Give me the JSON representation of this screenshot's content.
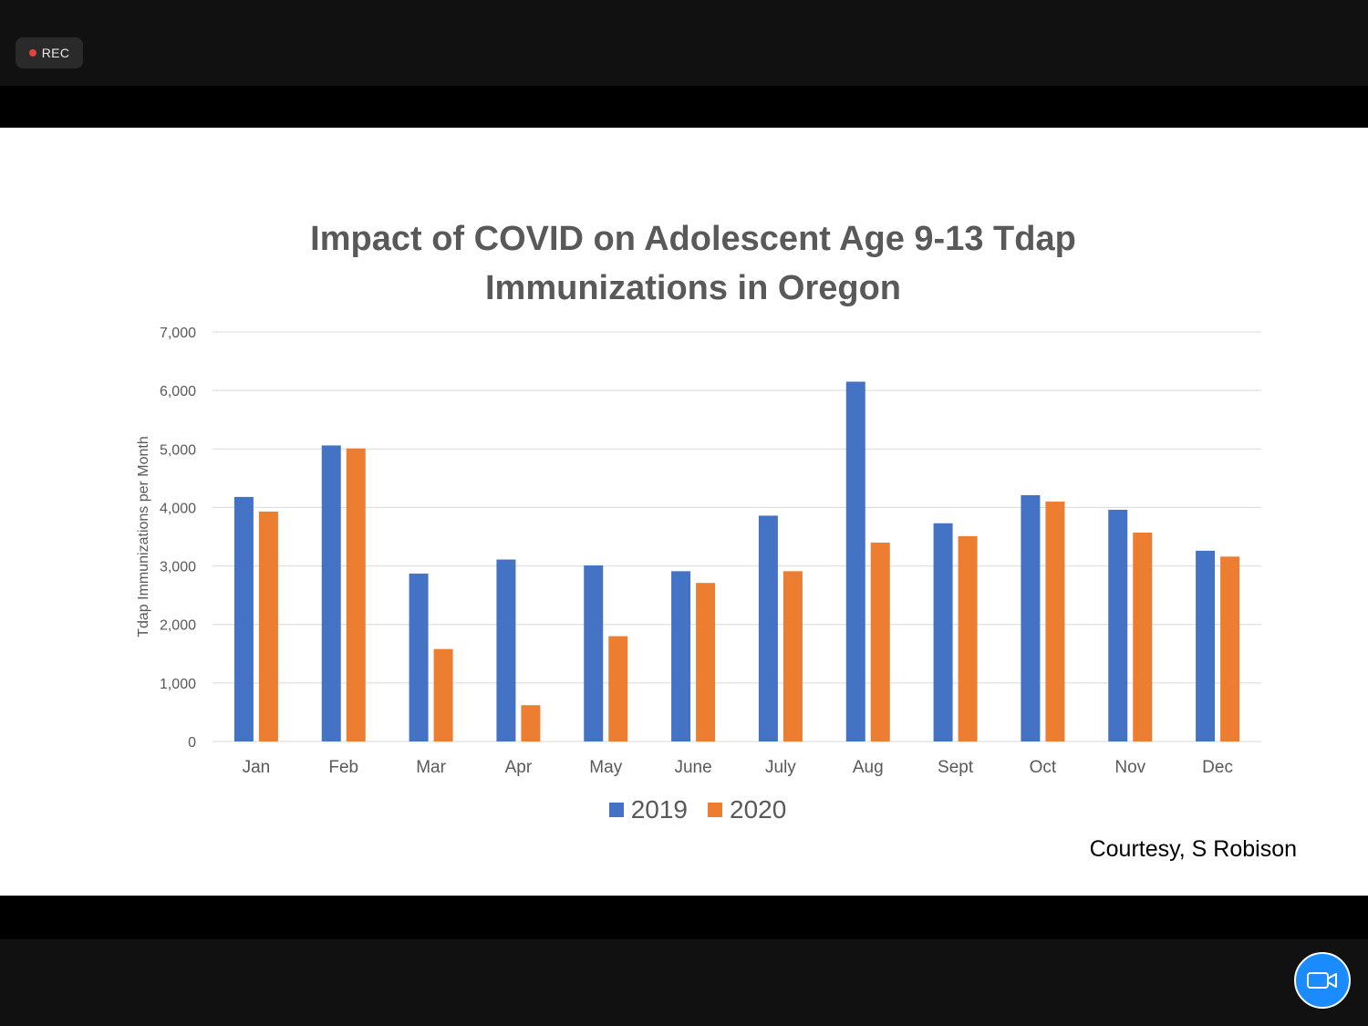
{
  "recording": {
    "label": "REC",
    "dot_color": "#e0443e"
  },
  "camera_button": {
    "icon": "video-camera-icon",
    "color": "#1a8cff"
  },
  "slide": {
    "courtesy": "Courtesy, S Robison"
  },
  "chart_data": {
    "type": "bar",
    "title_lines": [
      "Impact of COVID on Adolescent Age 9-13 Tdap",
      "Immunizations in Oregon"
    ],
    "xlabel": "",
    "ylabel": "Tdap Immunizations per Month",
    "ylim": [
      0,
      7000
    ],
    "yticks": [
      0,
      1000,
      2000,
      3000,
      4000,
      5000,
      6000,
      7000
    ],
    "ytick_labels": [
      "0",
      "1,000",
      "2,000",
      "3,000",
      "4,000",
      "5,000",
      "6,000",
      "7,000"
    ],
    "grid": true,
    "legend_placement": "bottom",
    "categories": [
      "Jan",
      "Feb",
      "Mar",
      "Apr",
      "May",
      "June",
      "July",
      "Aug",
      "Sept",
      "Oct",
      "Nov",
      "Dec"
    ],
    "series": [
      {
        "name": "2019",
        "color": "#4472c4",
        "values": [
          4180,
          5060,
          2870,
          3110,
          3010,
          2910,
          3860,
          6150,
          3730,
          4210,
          3960,
          3260
        ]
      },
      {
        "name": "2020",
        "color": "#ed7d31",
        "values": [
          3930,
          5010,
          1580,
          620,
          1800,
          2710,
          2910,
          3400,
          3510,
          4100,
          3570,
          3160
        ]
      }
    ]
  }
}
